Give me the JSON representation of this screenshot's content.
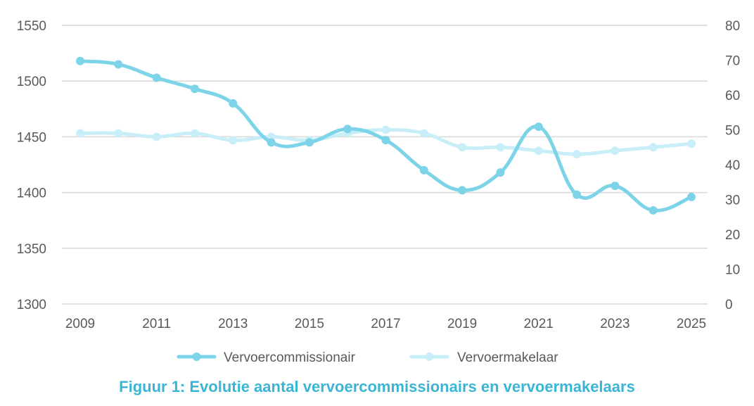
{
  "chart_data": {
    "type": "line",
    "x": [
      2009,
      2010,
      2011,
      2012,
      2013,
      2014,
      2015,
      2016,
      2017,
      2018,
      2019,
      2020,
      2021,
      2022,
      2023,
      2024,
      2025
    ],
    "x_tick_labels": [
      "2009",
      "2011",
      "2013",
      "2015",
      "2017",
      "2019",
      "2021",
      "2023",
      "2025"
    ],
    "y_left_ticks": [
      "1550",
      "1500",
      "1450",
      "1400",
      "1350",
      "1300"
    ],
    "y_right_ticks": [
      "80",
      "70",
      "60",
      "50",
      "40",
      "30",
      "20",
      "10",
      "0"
    ],
    "ylim_left": [
      1300,
      1550
    ],
    "ylim_right": [
      0,
      80
    ],
    "grid": "horizontal",
    "legend_position": "bottom",
    "series": [
      {
        "name": "Vervoercommissionair",
        "axis": "left",
        "color": "#7dd3e8",
        "values": [
          1518,
          1515,
          1503,
          1493,
          1480,
          1445,
          1445,
          1457,
          1447,
          1420,
          1402,
          1418,
          1459,
          1398,
          1406,
          1384,
          1396
        ]
      },
      {
        "name": "Vervoermakelaar",
        "axis": "right",
        "color": "#c8eef7",
        "values": [
          49,
          49,
          48,
          49,
          47,
          48,
          47,
          49,
          50,
          49,
          45,
          45,
          44,
          43,
          44,
          45,
          46
        ]
      }
    ]
  },
  "caption": "Figuur 1: Evolutie aantal vervoercommissionairs en vervoermakelaars",
  "caption_color": "#3bb5d6"
}
